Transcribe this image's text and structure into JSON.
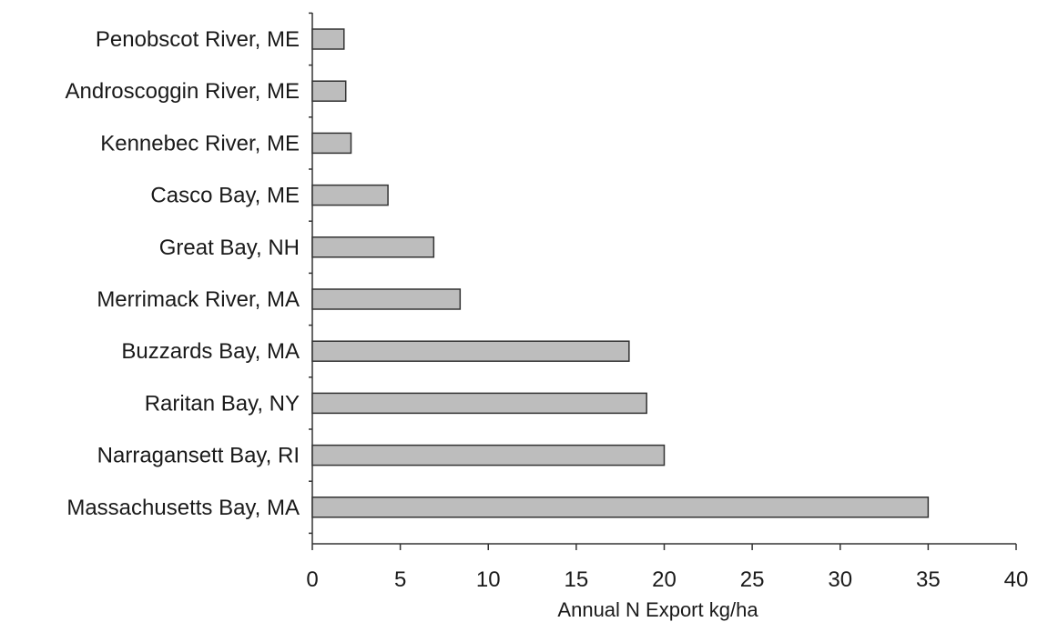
{
  "chart_data": {
    "type": "bar",
    "orientation": "horizontal",
    "categories": [
      "Penobscot River, ME",
      "Androscoggin River, ME",
      "Kennebec River, ME",
      "Casco Bay, ME",
      "Great Bay, NH",
      "Merrimack River, MA",
      "Buzzards Bay, MA",
      "Raritan Bay, NY",
      "Narragansett Bay, RI",
      "Massachusetts Bay, MA"
    ],
    "values": [
      1.8,
      1.9,
      2.2,
      4.3,
      6.9,
      8.4,
      18,
      19,
      20,
      35
    ],
    "title": "",
    "xlabel": "Annual N Export kg/ha",
    "ylabel": "",
    "xlim": [
      0,
      40
    ],
    "xticks": [
      0,
      5,
      10,
      15,
      20,
      25,
      30,
      35,
      40
    ],
    "grid": false,
    "bar_color": "#bdbdbd",
    "bar_stroke": "#333333"
  }
}
